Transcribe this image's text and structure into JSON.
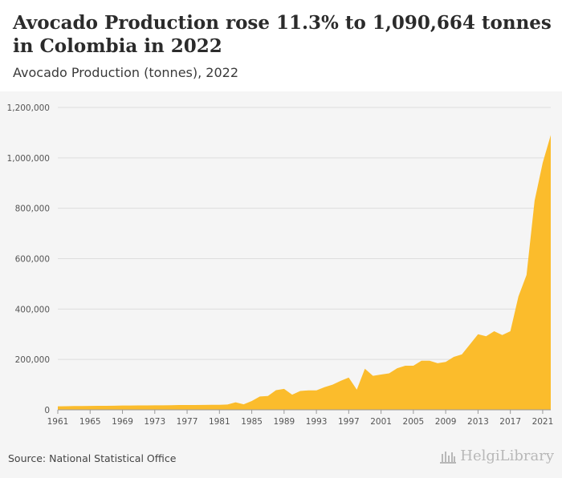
{
  "header": {
    "title": "Avocado Production rose 11.3% to 1,090,664 tonnes in Colombia in 2022",
    "subtitle": "Avocado Production (tonnes), 2022"
  },
  "footer": {
    "source": "Source: National Statistical Office",
    "logo_text": "HelgiLibrary"
  },
  "colors": {
    "fill": "#fbbc2c",
    "grid": "#dddddd",
    "chart_bg": "#f5f5f5"
  },
  "chart_data": {
    "type": "area",
    "title": "Avocado Production (tonnes), 2022",
    "xlabel": "",
    "ylabel": "",
    "ylim": [
      0,
      1200000
    ],
    "y_ticks": [
      0,
      200000,
      400000,
      600000,
      800000,
      1000000,
      1200000
    ],
    "y_tick_labels": [
      "0",
      "200,000",
      "400,000",
      "600,000",
      "800,000",
      "1,000,000",
      "1,200,000"
    ],
    "x_tick_labels": [
      "1961",
      "1965",
      "1969",
      "1973",
      "1977",
      "1981",
      "1985",
      "1989",
      "1993",
      "1997",
      "2001",
      "2005",
      "2009",
      "2013",
      "2017",
      "2021"
    ],
    "grid": true,
    "x": [
      1961,
      1962,
      1963,
      1964,
      1965,
      1966,
      1967,
      1968,
      1969,
      1970,
      1971,
      1972,
      1973,
      1974,
      1975,
      1976,
      1977,
      1978,
      1979,
      1980,
      1981,
      1982,
      1983,
      1984,
      1985,
      1986,
      1987,
      1988,
      1989,
      1990,
      1991,
      1992,
      1993,
      1994,
      1995,
      1996,
      1997,
      1998,
      1999,
      2000,
      2001,
      2002,
      2003,
      2004,
      2005,
      2006,
      2007,
      2008,
      2009,
      2010,
      2011,
      2012,
      2013,
      2014,
      2015,
      2016,
      2017,
      2018,
      2019,
      2020,
      2021,
      2022
    ],
    "values": [
      14000,
      14500,
      15000,
      15000,
      15500,
      16000,
      16000,
      16500,
      17000,
      17000,
      17500,
      17500,
      18000,
      18000,
      18500,
      19000,
      19000,
      19000,
      19500,
      20000,
      20000,
      21000,
      30000,
      22000,
      35000,
      53000,
      55000,
      78000,
      83000,
      60000,
      75000,
      77000,
      77000,
      90000,
      100000,
      115000,
      128000,
      80000,
      163000,
      135000,
      140000,
      145000,
      165000,
      175000,
      175000,
      195000,
      195000,
      185000,
      190000,
      210000,
      220000,
      260000,
      300000,
      292000,
      312000,
      297000,
      312000,
      450000,
      535000,
      830000,
      980000,
      1090664
    ]
  }
}
